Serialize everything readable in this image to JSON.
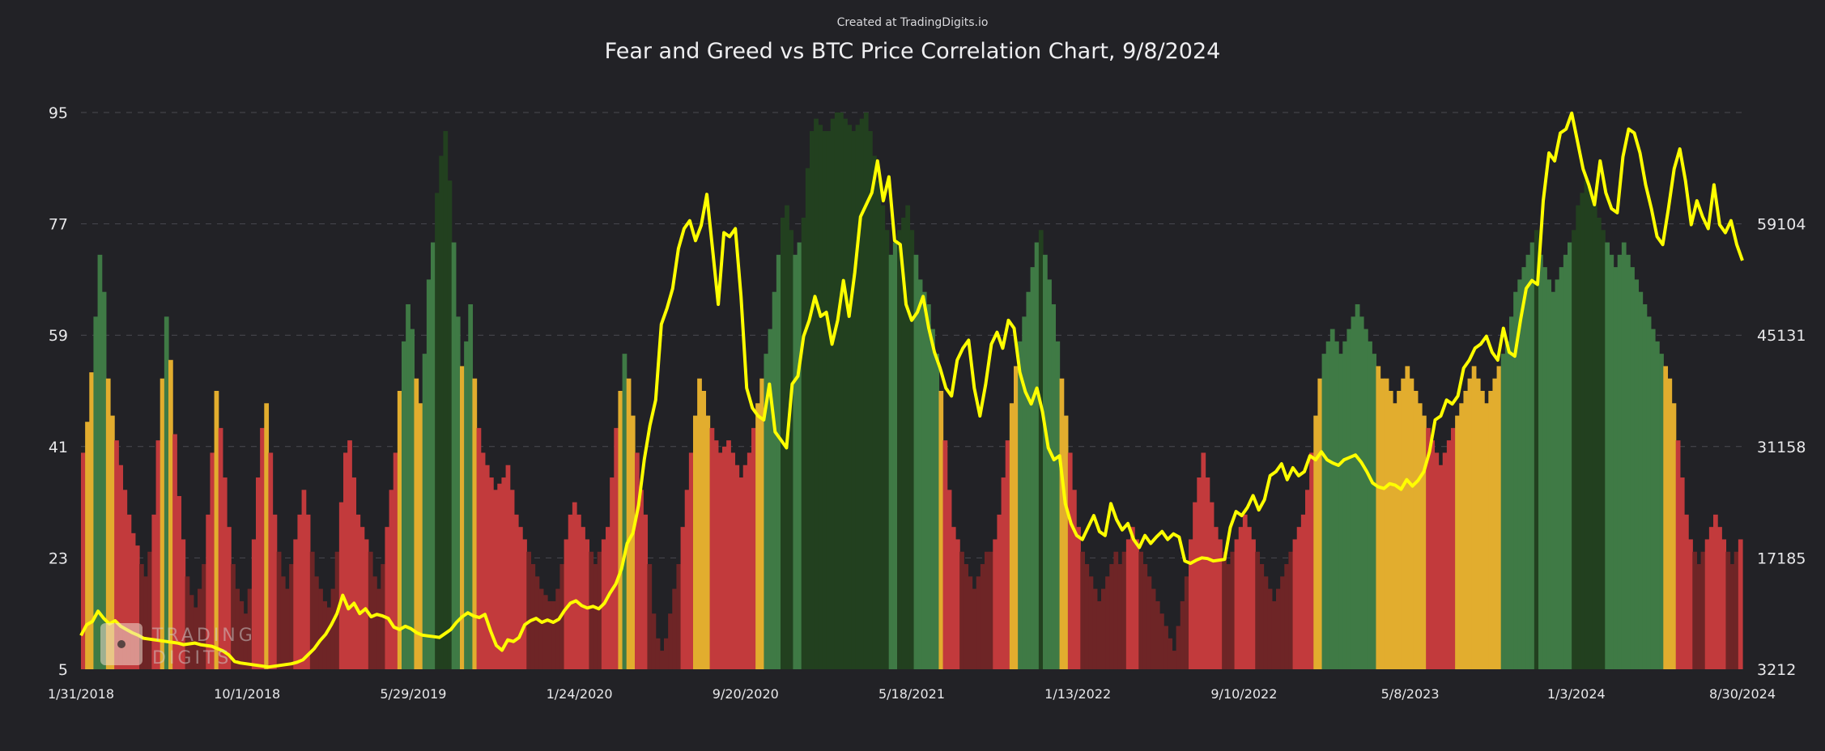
{
  "credit": "Created at TradingDigits.io",
  "watermark": {
    "line1": "TRADING",
    "line2": "DIGITS"
  },
  "colors": {
    "background": "#222226",
    "extreme_fear": "#6e2526",
    "fear": "#c23a3c",
    "neutral": "#e2ad2e",
    "greed": "#3f7a45",
    "extreme_greed": "#22401f",
    "price_line": "#ffff00",
    "grid": "#4a4a50"
  },
  "chart_data": {
    "type": "bar",
    "title": "Fear and Greed vs BTC Price Correlation Chart, 9/8/2024",
    "xlabel": "",
    "ylabel": "",
    "grid": true,
    "legend": "none",
    "x_ticks": [
      "1/31/2018",
      "10/1/2018",
      "5/29/2019",
      "1/24/2020",
      "9/20/2020",
      "5/18/2021",
      "1/13/2022",
      "9/10/2022",
      "5/8/2023",
      "1/3/2024",
      "8/30/2024"
    ],
    "left_axis": {
      "ticks": [
        "5",
        "23",
        "41",
        "59",
        "77",
        "95"
      ],
      "ylim": [
        5,
        95
      ]
    },
    "right_axis": {
      "ticks": [
        "3212",
        "17185",
        "31158",
        "45131",
        "59104"
      ],
      "ylim": [
        3212,
        73077
      ]
    },
    "series": [
      {
        "type": "bar",
        "values": [
          40,
          45,
          53,
          62,
          72,
          66,
          52,
          46,
          42,
          38,
          34,
          30,
          27,
          25,
          22,
          20,
          24,
          30,
          42,
          52,
          62,
          55,
          43,
          33,
          26,
          20,
          17,
          15,
          18,
          22,
          30,
          40,
          50,
          44,
          36,
          28,
          22,
          18,
          16,
          14,
          18,
          26,
          36,
          44,
          48,
          40,
          30,
          24,
          20,
          18,
          22,
          26,
          30,
          34,
          30,
          24,
          20,
          18,
          16,
          15,
          18,
          24,
          32,
          40,
          42,
          36,
          30,
          28,
          26,
          24,
          20,
          18,
          22,
          28,
          34,
          40,
          50,
          58,
          64,
          60,
          52,
          48,
          56,
          68,
          74,
          82,
          88,
          92,
          84,
          74,
          62,
          54,
          58,
          64,
          52,
          44,
          40,
          38,
          36,
          34,
          35,
          36,
          38,
          34,
          30,
          28,
          26,
          24,
          22,
          20,
          18,
          17,
          16,
          16,
          18,
          22,
          26,
          30,
          32,
          30,
          28,
          26,
          24,
          22,
          24,
          26,
          28,
          36,
          44,
          50,
          56,
          52,
          46,
          40,
          34,
          30,
          22,
          14,
          10,
          8,
          10,
          14,
          18,
          22,
          28,
          34,
          40,
          46,
          52,
          50,
          46,
          44,
          42,
          40,
          41,
          42,
          40,
          38,
          36,
          38,
          40,
          44,
          48,
          52,
          56,
          60,
          66,
          72,
          78,
          80,
          76,
          72,
          74,
          78,
          86,
          92,
          94,
          93,
          92,
          92,
          94,
          95,
          95,
          94,
          93,
          92,
          93,
          94,
          95,
          92,
          88,
          84,
          80,
          76,
          72,
          74,
          76,
          78,
          80,
          76,
          72,
          68,
          66,
          64,
          60,
          56,
          50,
          42,
          34,
          28,
          26,
          24,
          22,
          20,
          18,
          20,
          22,
          24,
          24,
          26,
          30,
          36,
          42,
          48,
          54,
          58,
          62,
          66,
          70,
          74,
          76,
          72,
          68,
          64,
          58,
          52,
          46,
          40,
          34,
          28,
          24,
          22,
          20,
          18,
          16,
          18,
          20,
          22,
          24,
          22,
          24,
          26,
          28,
          26,
          24,
          22,
          20,
          18,
          16,
          14,
          12,
          10,
          8,
          12,
          16,
          20,
          26,
          32,
          36,
          40,
          36,
          32,
          28,
          26,
          24,
          22,
          24,
          26,
          28,
          30,
          28,
          26,
          24,
          22,
          20,
          18,
          16,
          18,
          20,
          22,
          24,
          26,
          28,
          30,
          34,
          40,
          46,
          52,
          56,
          58,
          60,
          58,
          56,
          58,
          60,
          62,
          64,
          62,
          60,
          58,
          56,
          54,
          52,
          52,
          50,
          48,
          50,
          52,
          54,
          52,
          50,
          48,
          46,
          44,
          42,
          40,
          38,
          40,
          42,
          44,
          46,
          48,
          50,
          52,
          54,
          52,
          50,
          48,
          50,
          52,
          54,
          56,
          58,
          62,
          66,
          68,
          70,
          72,
          74,
          76,
          72,
          70,
          68,
          66,
          68,
          70,
          72,
          74,
          76,
          80,
          82,
          84,
          82,
          80,
          78,
          76,
          74,
          72,
          70,
          72,
          74,
          72,
          70,
          68,
          66,
          64,
          62,
          60,
          58,
          56,
          54,
          52,
          48,
          42,
          36,
          30,
          26,
          24,
          22,
          24,
          26,
          28,
          30,
          28,
          26,
          24,
          22,
          24,
          26
        ]
      },
      {
        "type": "line",
        "name": "",
        "values": [
          7450,
          8800,
          9200,
          10500,
          9600,
          8900,
          9300,
          8600,
          8200,
          7800,
          7500,
          7100,
          7000,
          6900,
          6800,
          6700,
          6600,
          6500,
          6300,
          6400,
          6500,
          6300,
          6200,
          6100,
          5800,
          5500,
          5000,
          4200,
          4000,
          3900,
          3800,
          3700,
          3600,
          3500,
          3600,
          3700,
          3800,
          3900,
          4100,
          4400,
          5100,
          5800,
          6800,
          7600,
          8800,
          10200,
          12500,
          10800,
          11500,
          10200,
          10800,
          9800,
          10100,
          9900,
          9600,
          8500,
          8200,
          8600,
          8300,
          7800,
          7500,
          7400,
          7300,
          7200,
          7700,
          8200,
          9100,
          9800,
          10300,
          9900,
          9700,
          10100,
          8000,
          6200,
          5600,
          6900,
          6700,
          7200,
          8800,
          9300,
          9600,
          9100,
          9400,
          9100,
          9500,
          10600,
          11500,
          11800,
          11200,
          10900,
          11100,
          10800,
          11500,
          12800,
          13900,
          15800,
          19000,
          20300,
          23800,
          29500,
          33800,
          37000,
          46500,
          48500,
          51000,
          56000,
          58500,
          59500,
          57000,
          58900,
          62800,
          56000,
          49000,
          58000,
          57500,
          58500,
          50000,
          38500,
          36000,
          35000,
          34500,
          39000,
          33000,
          32000,
          31000,
          39000,
          40000,
          45000,
          47000,
          50000,
          47500,
          48000,
          44000,
          47000,
          52000,
          47500,
          53000,
          60000,
          61500,
          63000,
          67000,
          62000,
          65000,
          57000,
          56500,
          49000,
          47000,
          48000,
          50000,
          46000,
          43000,
          41000,
          38500,
          37500,
          42000,
          43500,
          44500,
          38500,
          35000,
          39000,
          44000,
          45500,
          43500,
          47000,
          46000,
          40500,
          38000,
          36500,
          38500,
          35500,
          31000,
          29500,
          30000,
          24000,
          21500,
          20000,
          19500,
          21000,
          22500,
          20500,
          20000,
          24000,
          22000,
          20700,
          21500,
          19500,
          18500,
          20000,
          19000,
          19800,
          20500,
          19500,
          20200,
          19800,
          16800,
          16500,
          16900,
          17200,
          17100,
          16800,
          16900,
          17000,
          21000,
          23000,
          22500,
          23500,
          25000,
          23200,
          24500,
          27500,
          28000,
          29000,
          27000,
          28500,
          27500,
          28000,
          30000,
          29500,
          30500,
          29500,
          29100,
          28800,
          29500,
          29800,
          30100,
          29200,
          28000,
          26600,
          26100,
          25900,
          26500,
          26300,
          25800,
          27000,
          26200,
          26900,
          28000,
          30500,
          34500,
          35000,
          37000,
          36500,
          37500,
          41000,
          42000,
          43500,
          44000,
          45000,
          43000,
          42000,
          46000,
          43000,
          42500,
          47000,
          51000,
          52000,
          51500,
          62000,
          68000,
          67000,
          70500,
          71000,
          73000,
          69500,
          66000,
          64000,
          61500,
          67000,
          63000,
          61000,
          60500,
          67500,
          71000,
          70500,
          68000,
          64000,
          61000,
          57500,
          56500,
          61000,
          66000,
          68500,
          64500,
          59000,
          62000,
          60000,
          58500,
          64000,
          59000,
          58000,
          59500,
          56500,
          54500
        ]
      }
    ]
  }
}
